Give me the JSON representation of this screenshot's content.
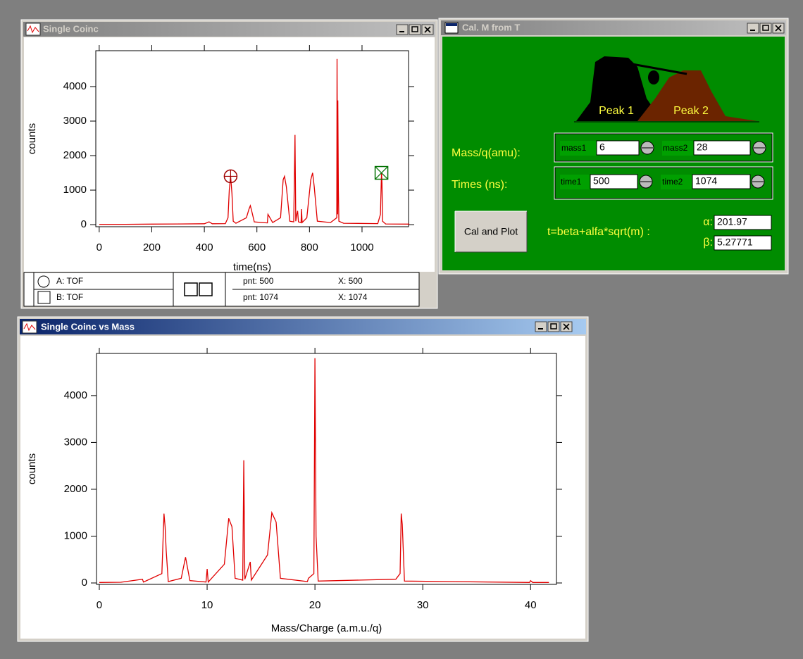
{
  "windows": [
    {
      "title": "Single Coinc"
    },
    {
      "title": "Cal. M from T"
    },
    {
      "title": "Single Coinc vs Mass"
    }
  ],
  "chart_data": [
    {
      "type": "line",
      "x_label": "time(ns)",
      "y_label": "counts",
      "color": "#e00000",
      "xlim": [
        -13,
        1177
      ],
      "ylim": [
        -60,
        5040
      ],
      "xticks": [
        0,
        200,
        400,
        600,
        800,
        1000
      ],
      "yticks": [
        0,
        1000,
        2000,
        3000,
        4000
      ],
      "x": [
        0,
        100,
        200,
        300,
        400,
        418,
        430,
        480,
        490,
        495,
        500,
        505,
        510,
        520,
        560,
        570,
        575,
        580,
        590,
        620,
        640,
        642,
        660,
        690,
        700,
        705,
        712,
        725,
        740,
        745,
        748,
        752,
        755,
        758,
        768,
        770,
        772,
        790,
        805,
        812,
        818,
        830,
        880,
        904,
        905,
        907,
        908,
        910,
        912,
        930,
        1060,
        1070,
        1074,
        1076,
        1078,
        1090,
        1180
      ],
      "values": [
        10,
        10,
        15,
        20,
        25,
        80,
        25,
        30,
        200,
        1000,
        1400,
        900,
        100,
        40,
        200,
        450,
        550,
        400,
        80,
        60,
        50,
        300,
        60,
        200,
        1300,
        1400,
        1100,
        100,
        80,
        2600,
        100,
        300,
        400,
        80,
        60,
        450,
        60,
        200,
        1300,
        1500,
        1100,
        100,
        60,
        200,
        4800,
        300,
        3600,
        1000,
        100,
        40,
        30,
        300,
        1500,
        1200,
        100,
        20,
        15
      ],
      "cursors": [
        {
          "label": "A: TOF",
          "x": 500,
          "point_text": "pnt: 500",
          "x_text": "X: 500"
        },
        {
          "label": "B: TOF",
          "x": 1074,
          "point_text": "pnt: 1074",
          "x_text": "X: 1074"
        }
      ]
    },
    {
      "type": "line",
      "x_label": "Mass/Charge (a.m.u./q)",
      "y_label": "counts",
      "color": "#e00000",
      "xlim": [
        -0.26,
        42.4
      ],
      "ylim": [
        -30,
        4900
      ],
      "xticks": [
        0,
        10,
        20,
        30,
        40
      ],
      "yticks": [
        0,
        1000,
        2000,
        3000,
        4000
      ],
      "x": [
        0,
        2,
        4,
        4.1,
        5.8,
        6,
        6.1,
        6.2,
        6.4,
        7.6,
        8,
        8.4,
        9.9,
        10,
        10.1,
        11.6,
        12,
        12.3,
        12.6,
        13.3,
        13.4,
        13.5,
        14,
        14.1,
        15.6,
        16,
        16.4,
        16.8,
        19.3,
        19.4,
        19.9,
        20,
        20.1,
        20.3,
        27.5,
        27.9,
        28,
        28.1,
        28.3,
        39.9,
        40,
        40.2,
        41.7
      ],
      "values": [
        10,
        15,
        80,
        20,
        200,
        1480,
        1200,
        700,
        30,
        100,
        550,
        50,
        20,
        300,
        20,
        400,
        1380,
        1200,
        100,
        60,
        2620,
        80,
        450,
        60,
        600,
        1500,
        1300,
        100,
        30,
        100,
        200,
        4800,
        1000,
        40,
        80,
        200,
        1480,
        1250,
        40,
        10,
        50,
        10,
        10
      ]
    }
  ],
  "calibration": {
    "peak1": "Peak 1",
    "peak2": "Peak 2",
    "mass_label": "Mass/q(amu):",
    "mass1_label": "mass1",
    "mass1": "6",
    "mass2_label": "mass2",
    "mass2": "28",
    "times_label": "Times (ns):",
    "time1_label": "time1",
    "time1": "500",
    "time2_label": "time2",
    "time2": "1074",
    "button": "Cal and Plot",
    "formula": "t=beta+alfa*sqrt(m) :",
    "alpha_label": "α:",
    "alpha": "201.97",
    "beta_label": "β:",
    "beta": "5.27771"
  }
}
